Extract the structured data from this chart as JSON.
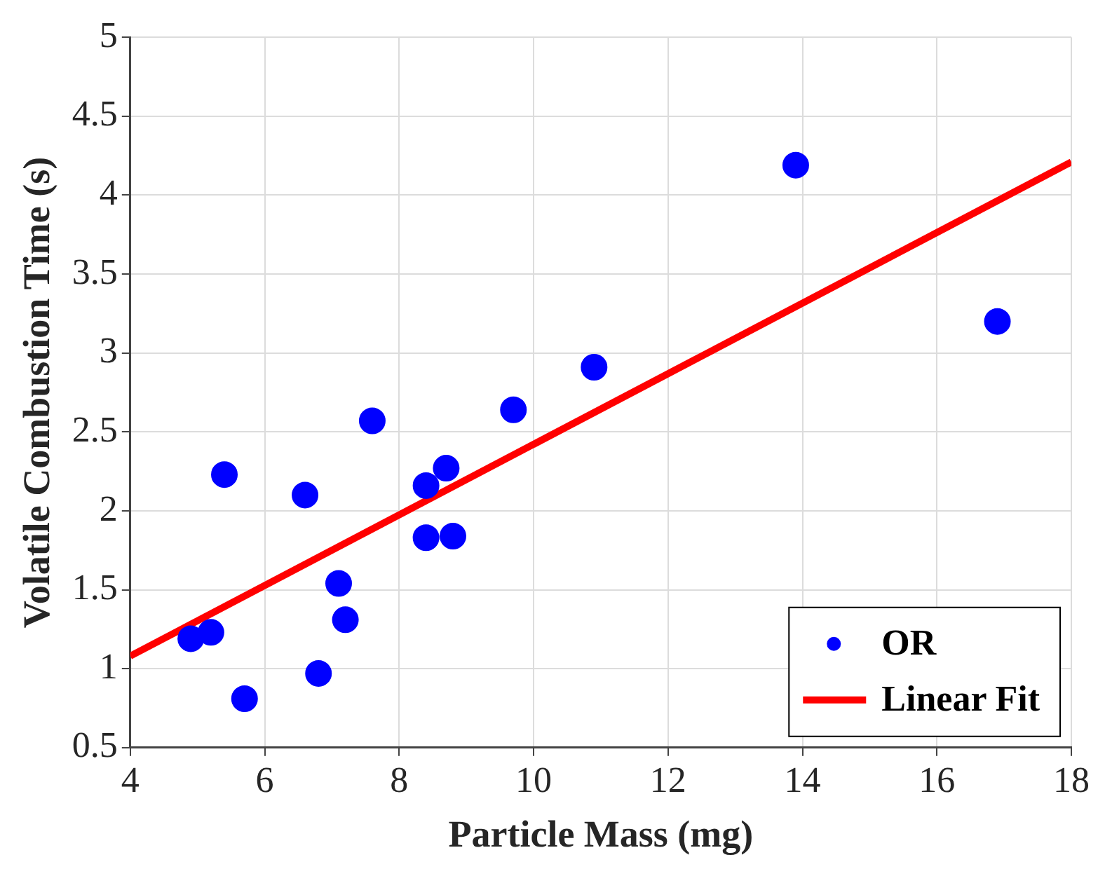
{
  "chart_data": {
    "type": "scatter",
    "xlabel": "Particle Mass (mg)",
    "ylabel": "Volatile Combustion Time (s)",
    "xlim": [
      4,
      18
    ],
    "xticks": [
      4,
      6,
      8,
      10,
      12,
      14,
      16,
      18
    ],
    "ylim": [
      0.5,
      5
    ],
    "yticks": [
      0.5,
      1,
      1.5,
      2,
      2.5,
      3,
      3.5,
      4,
      4.5,
      5
    ],
    "grid": true,
    "legend": "bottom right",
    "series": [
      {
        "name": "OR",
        "marker": "circle",
        "color": "#0000ff",
        "x": [
          4.9,
          5.2,
          5.4,
          5.7,
          6.6,
          6.8,
          7.1,
          7.2,
          7.6,
          8.4,
          8.4,
          8.7,
          8.8,
          9.7,
          10.9,
          13.9,
          16.9
        ],
        "values": [
          1.19,
          1.23,
          2.23,
          0.81,
          2.1,
          0.97,
          1.54,
          1.31,
          2.57,
          2.16,
          1.83,
          2.27,
          1.84,
          2.64,
          2.91,
          4.19,
          3.2
        ]
      },
      {
        "name": "Linear Fit",
        "type": "line",
        "marker": "none",
        "color": "#ff0000",
        "x": [
          4,
          18
        ],
        "values": [
          1.08,
          4.21
        ]
      }
    ]
  }
}
